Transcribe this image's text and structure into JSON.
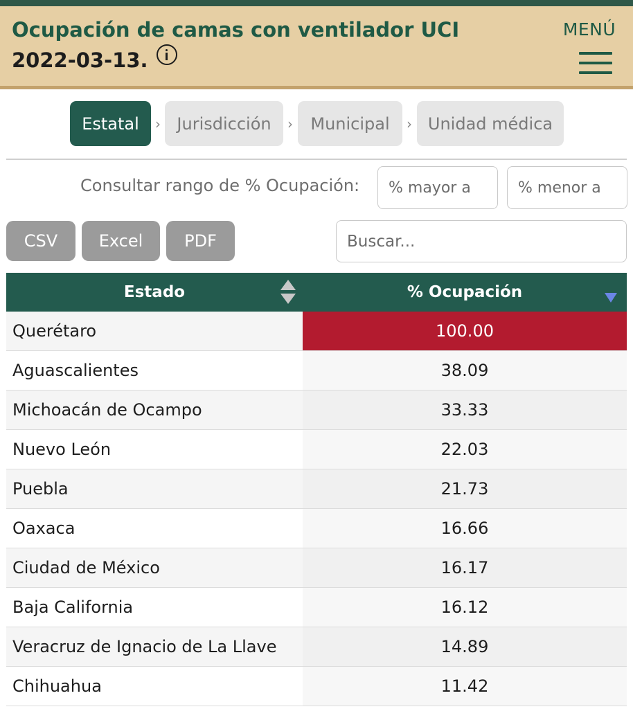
{
  "header": {
    "title": "Ocupación de camas con ventilador UCI",
    "date": "2022-03-13.",
    "info_icon": "info-icon",
    "menu_label": "MENÚ",
    "menu_icon": "hamburger-menu-icon"
  },
  "breadcrumbs": [
    {
      "label": "Estatal",
      "active": true
    },
    {
      "label": "Jurisdicción",
      "active": false
    },
    {
      "label": "Municipal",
      "active": false
    },
    {
      "label": "Unidad médica",
      "active": false
    }
  ],
  "breadcrumb_separator": "›",
  "range_filter": {
    "label": "Consultar rango de % Ocupación:",
    "min_placeholder": "% mayor a",
    "max_placeholder": "% menor a"
  },
  "export_buttons": [
    "CSV",
    "Excel",
    "PDF"
  ],
  "search": {
    "placeholder": "Buscar..."
  },
  "table": {
    "columns": [
      "Estado",
      "% Ocupación"
    ],
    "sort": {
      "column": "% Ocupación",
      "direction": "desc"
    },
    "rows": [
      {
        "estado": "Querétaro",
        "ocupacion": "100.00",
        "highlight": true
      },
      {
        "estado": "Aguascalientes",
        "ocupacion": "38.09"
      },
      {
        "estado": "Michoacán de Ocampo",
        "ocupacion": "33.33"
      },
      {
        "estado": "Nuevo León",
        "ocupacion": "22.03"
      },
      {
        "estado": "Puebla",
        "ocupacion": "21.73"
      },
      {
        "estado": "Oaxaca",
        "ocupacion": "16.66"
      },
      {
        "estado": "Ciudad de México",
        "ocupacion": "16.17"
      },
      {
        "estado": "Baja California",
        "ocupacion": "16.12"
      },
      {
        "estado": "Veracruz de Ignacio de La Llave",
        "ocupacion": "14.89"
      },
      {
        "estado": "Chihuahua",
        "ocupacion": "11.42"
      }
    ]
  },
  "colors": {
    "brand_green": "#235b4e",
    "header_bg": "#e6cfa4",
    "alert_red": "#b31b2f",
    "sort_indicator": "#6b86e6"
  }
}
